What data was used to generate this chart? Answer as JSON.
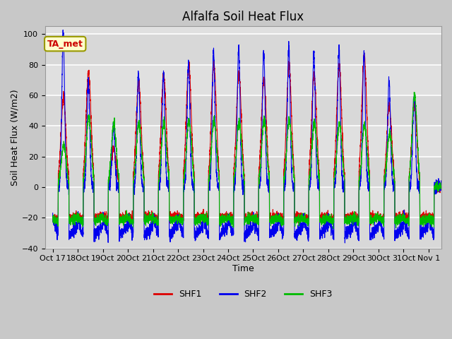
{
  "title": "Alfalfa Soil Heat Flux",
  "xlabel": "Time",
  "ylabel": "Soil Heat Flux (W/m2)",
  "ylim": [
    -40,
    105
  ],
  "yticks": [
    -40,
    -20,
    0,
    20,
    40,
    60,
    80,
    100
  ],
  "shf1_color": "#dd0000",
  "shf2_color": "#0000ee",
  "shf3_color": "#00bb00",
  "fig_bg": "#c8c8c8",
  "plot_bg": "#e0e0e0",
  "ta_met_label": "TA_met",
  "legend_labels": [
    "SHF1",
    "SHF2",
    "SHF3"
  ],
  "n_days": 16,
  "ppd": 288,
  "tick_labels": [
    "Oct 17",
    "18Oct",
    "19Oct",
    "20Oct",
    "21Oct",
    "22Oct",
    "23Oct",
    "24Oct",
    "25Oct",
    "26Oct",
    "27Oct",
    "28Oct",
    "29Oct",
    "30Oct",
    "31Oct",
    "Nov 1"
  ],
  "shf2_peaks": [
    100,
    70,
    40,
    75,
    74,
    82,
    89,
    91,
    88,
    91,
    87,
    90,
    88,
    70,
    60,
    0
  ],
  "shf1_peaks": [
    58,
    75,
    25,
    68,
    73,
    80,
    80,
    75,
    70,
    79,
    73,
    80,
    85,
    52,
    55,
    0
  ],
  "shf3_peaks": [
    27,
    46,
    41,
    42,
    42,
    43,
    44,
    43,
    44,
    44,
    42,
    42,
    40,
    35,
    60,
    0
  ],
  "shf1_night": -20,
  "shf2_night": -30,
  "shf3_night": -22
}
